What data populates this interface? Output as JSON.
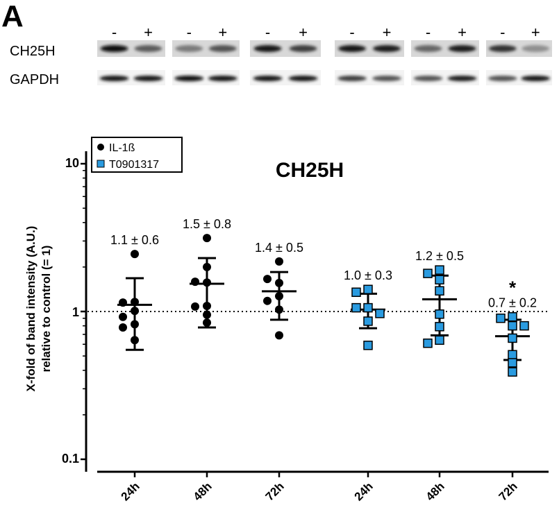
{
  "panel_letter": "A",
  "blot": {
    "treatment_labels": [
      "-",
      "+",
      "-",
      "+",
      "-",
      "+",
      "-",
      "+",
      "-",
      "+",
      "-",
      "+"
    ],
    "rows": [
      "CH25H",
      "GAPDH"
    ]
  },
  "chart_data": {
    "type": "scatter",
    "title": "CH25H",
    "ylabel_lines": [
      "X-fold of band intensity (A.U.)",
      "relative to control (= 1)"
    ],
    "xlabel": "",
    "yscale": "log",
    "ylim": [
      0.1,
      15
    ],
    "yticks": [
      "10",
      "1",
      "0.1"
    ],
    "yticks_values": [
      10,
      1,
      0.1
    ],
    "reference_line": 1,
    "grid": false,
    "legend_position": "top-left",
    "colors": {
      "IL-1ß": "#000000",
      "T0901317": "#2a9be0"
    },
    "categories": [
      "24h",
      "48h",
      "72h",
      "24h",
      "48h",
      "72h"
    ],
    "series": [
      {
        "name": "IL-1ß",
        "marker": "circle",
        "groups": [
          {
            "category": "24h",
            "points": [
              2.45,
              1.16,
              1.15,
              1.01,
              0.92,
              0.82,
              0.78,
              0.64
            ],
            "mean": 1.11,
            "err_high": 1.68,
            "err_low": 0.55,
            "label": "1.1 ± 0.6"
          },
          {
            "category": "48h",
            "points": [
              3.14,
              2.0,
              1.57,
              1.59,
              1.09,
              1.08,
              0.95,
              0.84
            ],
            "mean": 1.54,
            "err_high": 2.3,
            "err_low": 0.78,
            "label": "1.5 ± 0.8"
          },
          {
            "category": "72h",
            "points": [
              2.18,
              1.56,
              1.66,
              1.27,
              1.18,
              1.03,
              0.69
            ],
            "mean": 1.37,
            "err_high": 1.85,
            "err_low": 0.88,
            "label": "1.4 ± 0.5"
          }
        ]
      },
      {
        "name": "T0901317",
        "marker": "square",
        "groups": [
          {
            "category": "24h",
            "points": [
              1.41,
              1.35,
              1.06,
              1.06,
              0.97,
              0.86,
              0.59
            ],
            "mean": 1.03,
            "err_high": 1.32,
            "err_low": 0.77,
            "label": "1.0 ± 0.3"
          },
          {
            "category": "48h",
            "points": [
              1.91,
              1.81,
              1.64,
              1.38,
              0.96,
              0.79,
              0.64,
              0.61
            ],
            "mean": 1.21,
            "err_high": 1.75,
            "err_low": 0.69,
            "label": "1.2 ± 0.5"
          },
          {
            "category": "72h",
            "points": [
              0.92,
              0.9,
              0.8,
              0.8,
              0.66,
              0.51,
              0.45,
              0.39
            ],
            "mean": 0.68,
            "err_high": 0.88,
            "err_low": 0.47,
            "label": "0.7 ± 0.2",
            "significance": "*"
          }
        ]
      }
    ]
  }
}
